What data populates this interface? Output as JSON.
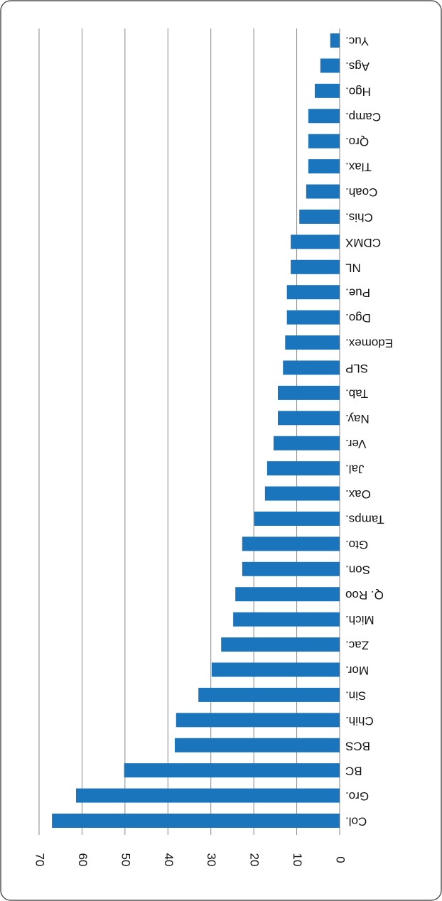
{
  "chart_data": {
    "type": "barh",
    "categories": [
      "Col.",
      "Gro.",
      "BC",
      "BCS",
      "Chih.",
      "Sin.",
      "Mor.",
      "Zac.",
      "Mich.",
      "Q. Roo",
      "Son.",
      "Gto.",
      "Tamps.",
      "Oax.",
      "Jal.",
      "Ver.",
      "Nay.",
      "Tab.",
      "SLP",
      "Edomex.",
      "Dgo.",
      "Pue.",
      "NL",
      "CDMX",
      "Chis.",
      "Coah.",
      "Tlax.",
      "Qro.",
      "Camp.",
      "Hgo.",
      "Ags.",
      "Yuc."
    ],
    "values": [
      67.0,
      61.4,
      50.2,
      38.4,
      38.1,
      32.9,
      29.8,
      27.6,
      24.8,
      24.3,
      22.7,
      22.7,
      19.9,
      17.4,
      16.9,
      15.4,
      14.4,
      14.4,
      13.2,
      12.7,
      12.3,
      12.3,
      11.4,
      11.4,
      9.4,
      7.8,
      7.3,
      7.3,
      7.3,
      5.8,
      4.5,
      2.2
    ],
    "color": "#1a75bc",
    "xlim": [
      0,
      70
    ],
    "xticks": [
      0,
      10,
      20,
      30,
      40,
      50,
      60,
      70
    ],
    "grid": true
  }
}
